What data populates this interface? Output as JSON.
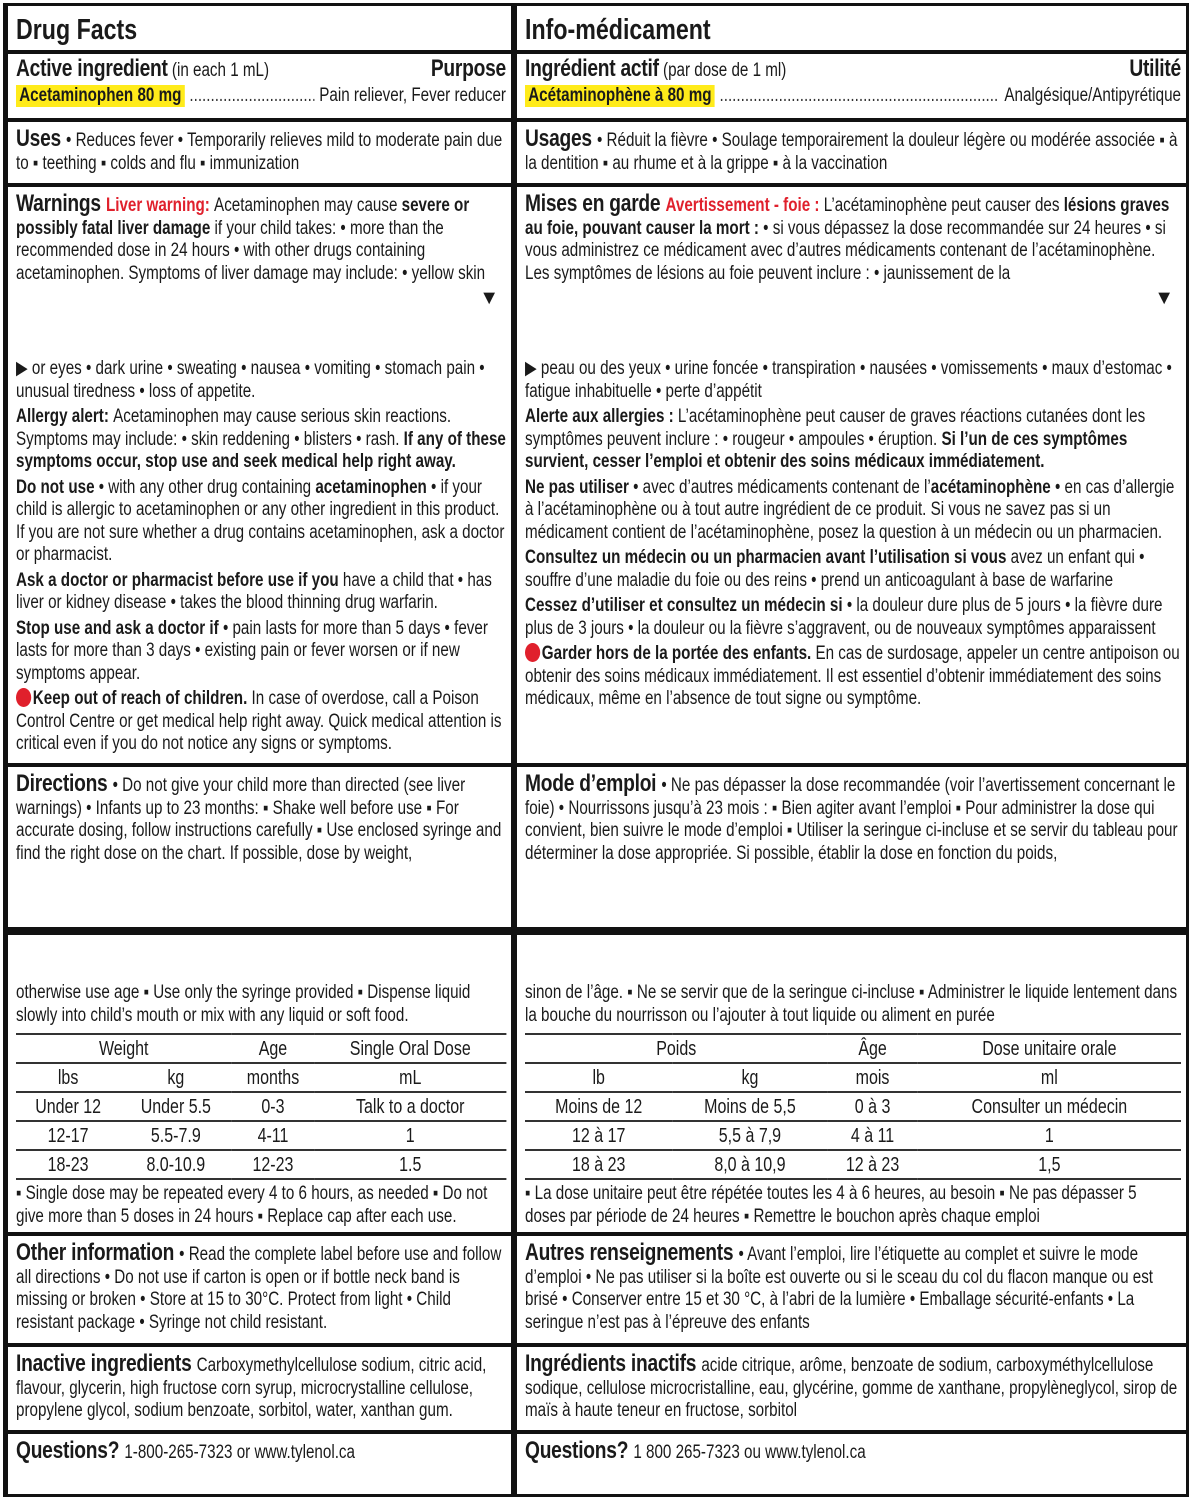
{
  "colors": {
    "highlight": "#ffeb1a",
    "warning_red": "#e0202c",
    "border": "#111111"
  },
  "en": {
    "title": "Drug Facts",
    "active": {
      "label": "Active ingredient",
      "label_note": " (in each 1 mL)",
      "purpose_header": "Purpose",
      "ingredient": "Acetaminophen 80 mg",
      "leader": "..................................................",
      "purpose": "Pain reliever, Fever reducer"
    },
    "uses": [
      {
        "t": "Uses ",
        "s": "h"
      },
      {
        "t": "• Reduces fever  • Temporarily relieves mild to moderate pain due to  ▪ teething  ▪ colds and flu  ▪ immunization"
      }
    ],
    "warnings1": [
      {
        "t": "Warnings ",
        "s": "h"
      },
      {
        "t": "Liver warning: ",
        "s": "r"
      },
      {
        "t": "Acetaminophen may cause "
      },
      {
        "t": "severe or possibly fatal liver damage",
        "s": "b"
      },
      {
        "t": " if your child takes: • more than the recommended dose in 24 hours  • with other drugs containing acetaminophen. Symptoms of liver damage may include: • yellow skin"
      }
    ],
    "warnings2": [
      [
        {
          "t": "▶ or eyes  • dark urine  • sweating  • nausea  • vomiting  • stomach pain  • unusual tiredness  • loss of appetite."
        }
      ],
      [
        {
          "t": "Allergy alert: ",
          "s": "b"
        },
        {
          "t": "Acetaminophen may cause serious skin reactions. Symptoms may include: • skin reddening  • blisters  • rash. "
        },
        {
          "t": "If any of these symptoms occur, stop use and seek medical help right away.",
          "s": "b"
        }
      ],
      [
        {
          "t": "Do not use ",
          "s": "b"
        },
        {
          "t": " • with any other drug containing "
        },
        {
          "t": "acetaminophen",
          "s": "b"
        },
        {
          "t": "  • if your child is allergic to acetaminophen or any other ingredient in this product. If you are not sure whether a drug contains acetaminophen, ask a doctor or pharmacist."
        }
      ],
      [
        {
          "t": "Ask a doctor or pharmacist before use if you",
          "s": "b"
        },
        {
          "t": " have a child that • has liver or kidney disease  • takes the blood thinning drug warfarin."
        }
      ],
      [
        {
          "t": "Stop use and ask a doctor if ",
          "s": "b"
        },
        {
          "t": " • pain lasts for more than 5 days  • fever lasts for more than 3 days  • existing pain or fever worsen or if new symptoms appear."
        }
      ],
      [
        {
          "t": "",
          "s": "dot"
        },
        {
          "t": "Keep out of reach of children.",
          "s": "b"
        },
        {
          "t": " In case of overdose, call a Poison Control Centre or get medical help right away. Quick medical attention is critical even if you do not notice any signs or symptoms."
        }
      ]
    ],
    "directions1": [
      {
        "t": "Directions ",
        "s": "h"
      },
      {
        "t": " • Do not give your child more than directed (see liver warnings)  • Infants up to 23 months:  ▪ Shake well before use  ▪ For accurate dosing, follow instructions carefully  ▪ Use enclosed syringe and find the right dose on the chart. If possible, dose by weight,"
      }
    ],
    "directions2": [
      {
        "t": "otherwise use age  ▪ Use only the syringe provided  ▪ Dispense liquid slowly into child’s mouth or mix with any liquid or soft food."
      }
    ],
    "table": {
      "header": [
        "Weight",
        "Age",
        "Single Oral Dose"
      ],
      "units": [
        "lbs",
        "kg",
        "months",
        "mL"
      ],
      "rows": [
        [
          "Under 12",
          "Under 5.5",
          "0-3",
          "Talk to a doctor"
        ],
        [
          "12-17",
          "5.5-7.9",
          "4-11",
          "1"
        ],
        [
          "18-23",
          "8.0-10.9",
          "12-23",
          "1.5"
        ]
      ]
    },
    "directions3": [
      {
        "t": "▪ Single dose may be repeated every 4 to 6 hours, as needed  ▪ Do not give more than 5 doses in 24 hours  ▪ Replace cap after each use."
      }
    ],
    "other": [
      {
        "t": "Other information ",
        "s": "h"
      },
      {
        "t": " • Read the complete label before use and follow all directions  • Do not use if carton is open or if bottle neck band is missing or broken  • Store at 15 to 30°C. Protect from light  • Child resistant package  • Syringe not child resistant."
      }
    ],
    "inactive": [
      {
        "t": "Inactive ingredients ",
        "s": "h"
      },
      {
        "t": " Carboxymethylcellulose sodium, citric acid, flavour, glycerin, high fructose corn syrup, microcrystalline cellulose, propylene glycol, sodium benzoate, sorbitol, water, xanthan gum."
      }
    ],
    "questions": [
      {
        "t": "Questions? ",
        "s": "h"
      },
      {
        "t": "1-800-265-7323 or www.tylenol.ca"
      }
    ]
  },
  "fr": {
    "title": "Info-médicament",
    "active": {
      "label": "Ingrédient actif",
      "label_note": " (par dose de 1 ml)",
      "purpose_header": "Utilité",
      "ingredient": "Acétaminophène à 80 mg",
      "leader": "......................................................................................................",
      "purpose": "Analgésique/Antipyrétique"
    },
    "uses": [
      {
        "t": "Usages ",
        "s": "h"
      },
      {
        "t": " • Réduit la fièvre  • Soulage temporairement la douleur légère ou modérée associée  ▪ à la dentition  ▪ au rhume et à la grippe  ▪ à la vaccination"
      }
    ],
    "warnings1": [
      {
        "t": "Mises en garde ",
        "s": "h"
      },
      {
        "t": "Avertissement - foie : ",
        "s": "r"
      },
      {
        "t": "L’acétaminophène peut causer des "
      },
      {
        "t": "lésions graves au foie, pouvant causer la mort :",
        "s": "b"
      },
      {
        "t": " • si vous dépassez la dose recommandée sur 24 heures  • si vous administrez ce médicament avec d’autres médicaments contenant de l’acétaminophène. Les symptômes de lésions au foie peuvent inclure : • jaunissement de la"
      }
    ],
    "warnings2": [
      [
        {
          "t": "▶ peau ou des yeux  • urine foncée  • transpiration  • nausées  • vomissements  • maux d’estomac  • fatigue inhabituelle  • perte d’appétit"
        }
      ],
      [
        {
          "t": "Alerte aux allergies : ",
          "s": "b"
        },
        {
          "t": "L’acétaminophène peut causer de graves réactions cutanées dont les symptômes peuvent inclure :  • rougeur  • ampoules  • éruption. "
        },
        {
          "t": "Si l’un de ces symptômes survient, cesser l’emploi et obtenir des soins médicaux immédiatement.",
          "s": "b"
        }
      ],
      [
        {
          "t": "Ne pas utiliser ",
          "s": "b"
        },
        {
          "t": " • avec d’autres médicaments contenant de l’"
        },
        {
          "t": "acétaminophène",
          "s": "b"
        },
        {
          "t": "  • en cas d’allergie à l’acétaminophène ou à tout autre ingrédient de ce produit. Si vous ne savez pas si un médicament contient de l’acétaminophène, posez la question à un médecin ou un pharmacien."
        }
      ],
      [
        {
          "t": "Consultez un médecin ou un pharmacien avant l’utilisation si vous",
          "s": "b"
        },
        {
          "t": " avez un enfant qui • souffre d’une maladie du foie ou des reins  • prend un anticoagulant à base de warfarine"
        }
      ],
      [
        {
          "t": "Cessez d’utiliser et consultez un médecin si ",
          "s": "b"
        },
        {
          "t": " • la douleur dure plus de 5 jours  • la fièvre dure plus de 3 jours  • la douleur ou la fièvre s’aggravent, ou de nouveaux symptômes apparaissent"
        }
      ],
      [
        {
          "t": "",
          "s": "dot"
        },
        {
          "t": "Garder hors de la portée des enfants.",
          "s": "b"
        },
        {
          "t": " En cas de surdosage, appeler un centre antipoison ou obtenir des soins médicaux immédiatement. Il est essentiel d’obtenir immédiatement des soins médicaux, même en l’absence de tout signe ou symptôme."
        }
      ]
    ],
    "directions1": [
      {
        "t": "Mode d’emploi ",
        "s": "h"
      },
      {
        "t": " • Ne pas dépasser la dose recommandée (voir l’avertissement concernant le foie)  • Nourrissons jusqu’à 23 mois :  ▪ Bien agiter avant l’emploi  ▪ Pour administrer la dose qui convient, bien suivre le mode d’emploi  ▪ Utiliser la seringue ci-incluse et se servir du tableau pour déterminer la dose appropriée. Si possible, établir la dose en fonction du poids,"
      }
    ],
    "directions2": [
      {
        "t": "sinon de l’âge.  ▪ Ne se servir que de la seringue ci-incluse  ▪ Administrer le liquide lentement dans la bouche du nourrisson ou l’ajouter à tout liquide ou aliment en purée"
      }
    ],
    "table": {
      "header": [
        "Poids",
        "Âge",
        "Dose unitaire orale"
      ],
      "units": [
        "lb",
        "kg",
        "mois",
        "ml"
      ],
      "rows": [
        [
          "Moins de 12",
          "Moins de 5,5",
          "0 à 3",
          "Consulter un médecin"
        ],
        [
          "12 à 17",
          "5,5 à 7,9",
          "4 à 11",
          "1"
        ],
        [
          "18 à 23",
          "8,0 à 10,9",
          "12 à 23",
          "1,5"
        ]
      ]
    },
    "directions3": [
      {
        "t": "▪ La dose unitaire peut être répétée toutes les 4 à 6 heures, au besoin  ▪ Ne pas dépasser 5 doses par période de 24 heures  ▪ Remettre le bouchon après chaque emploi"
      }
    ],
    "other": [
      {
        "t": "Autres renseignements ",
        "s": "h"
      },
      {
        "t": " • Avant l’emploi, lire l’étiquette au complet et suivre le mode d’emploi  • Ne pas utiliser si la boîte est ouverte ou si le sceau du col du flacon manque ou est brisé  • Conserver entre 15 et 30 °C, à l’abri de la lumière  • Emballage sécurité-enfants  • La seringue n’est pas à l’épreuve des enfants"
      }
    ],
    "inactive": [
      {
        "t": "Ingrédients inactifs ",
        "s": "h"
      },
      {
        "t": " acide citrique, arôme, benzoate de sodium, carboxyméthylcellulose sodique, cellulose microcristalline, eau, glycérine, gomme de xanthane, propylèneglycol, sirop de maïs à haute teneur en fructose, sorbitol"
      }
    ],
    "questions": [
      {
        "t": "Questions? ",
        "s": "h"
      },
      {
        "t": "1 800 265-7323 ou www.tylenol.ca"
      }
    ]
  }
}
